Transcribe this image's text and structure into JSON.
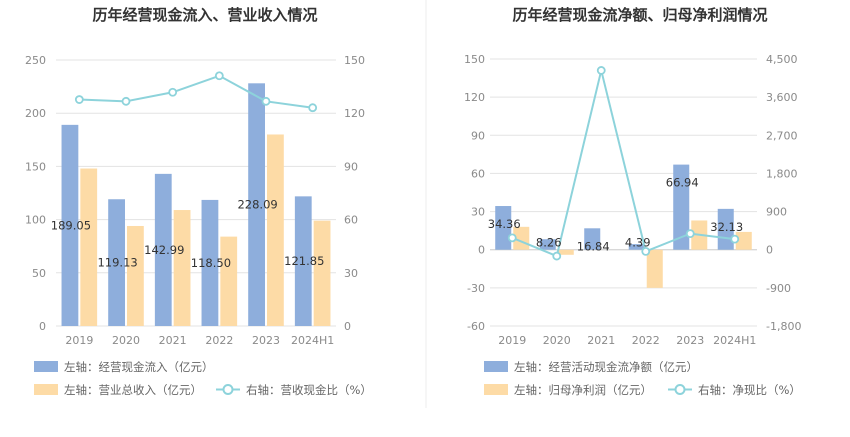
{
  "colors": {
    "bar_primary": "#8eaedc",
    "bar_secondary": "#fddba6",
    "line": "#8dd3db",
    "grid": "#e3e3e3",
    "divider": "#eeeeee"
  },
  "chart_data": [
    {
      "type": "bar",
      "title": "历年经营现金流入、营业收入情况",
      "categories": [
        "2019",
        "2020",
        "2021",
        "2022",
        "2023",
        "2024H1"
      ],
      "series": [
        {
          "name": "左轴：经营现金流入（亿元）",
          "axis": "left",
          "type": "bar",
          "values": [
            189.05,
            119.13,
            142.99,
            118.5,
            228.09,
            121.85
          ],
          "labels": [
            "189.05",
            "119.13",
            "142.99",
            "118.50",
            "228.09",
            "121.85"
          ]
        },
        {
          "name": "左轴：营业总收入（亿元）",
          "axis": "left",
          "type": "bar",
          "values": [
            148,
            94,
            109,
            84,
            180,
            99
          ]
        },
        {
          "name": "右轴：营收现金比（%）",
          "axis": "right",
          "type": "line",
          "values": [
            127.7,
            126.7,
            131.8,
            141.1,
            126.7,
            123.1
          ]
        }
      ],
      "y_left": {
        "min": 0,
        "max": 250,
        "ticks": [
          "0",
          "50",
          "100",
          "150",
          "200",
          "250"
        ]
      },
      "y_right": {
        "min": 0,
        "max": 150,
        "ticks": [
          "0",
          "30",
          "60",
          "90",
          "120",
          "150"
        ]
      },
      "grid": true,
      "legend_position": "bottom-left"
    },
    {
      "type": "bar",
      "title": "历年经营现金流净额、归母净利润情况",
      "categories": [
        "2019",
        "2020",
        "2021",
        "2022",
        "2023",
        "2024H1"
      ],
      "series": [
        {
          "name": "左轴：经营活动现金流净额（亿元）",
          "axis": "left",
          "type": "bar",
          "values": [
            34.36,
            8.26,
            16.84,
            4.39,
            66.94,
            32.13
          ],
          "labels": [
            "34.36",
            "8.26",
            "16.84",
            "4.39",
            "66.94",
            "32.13"
          ]
        },
        {
          "name": "左轴：归母净利润（亿元）",
          "axis": "left",
          "type": "bar",
          "values": [
            18,
            -4,
            0,
            -30,
            23,
            14
          ]
        },
        {
          "name": "右轴：净现比（%）",
          "axis": "right",
          "type": "line",
          "values": [
            280,
            -150,
            4230,
            -40,
            380,
            250
          ]
        }
      ],
      "y_left": {
        "min": -60,
        "max": 150,
        "ticks": [
          "-60",
          "-30",
          "0",
          "30",
          "60",
          "90",
          "120",
          "150"
        ]
      },
      "y_right": {
        "min": -1800,
        "max": 4500,
        "ticks": [
          "-1,800",
          "-900",
          "0",
          "900",
          "1,800",
          "2,700",
          "3,600",
          "4,500"
        ]
      },
      "grid": true,
      "legend_position": "bottom-left"
    }
  ]
}
